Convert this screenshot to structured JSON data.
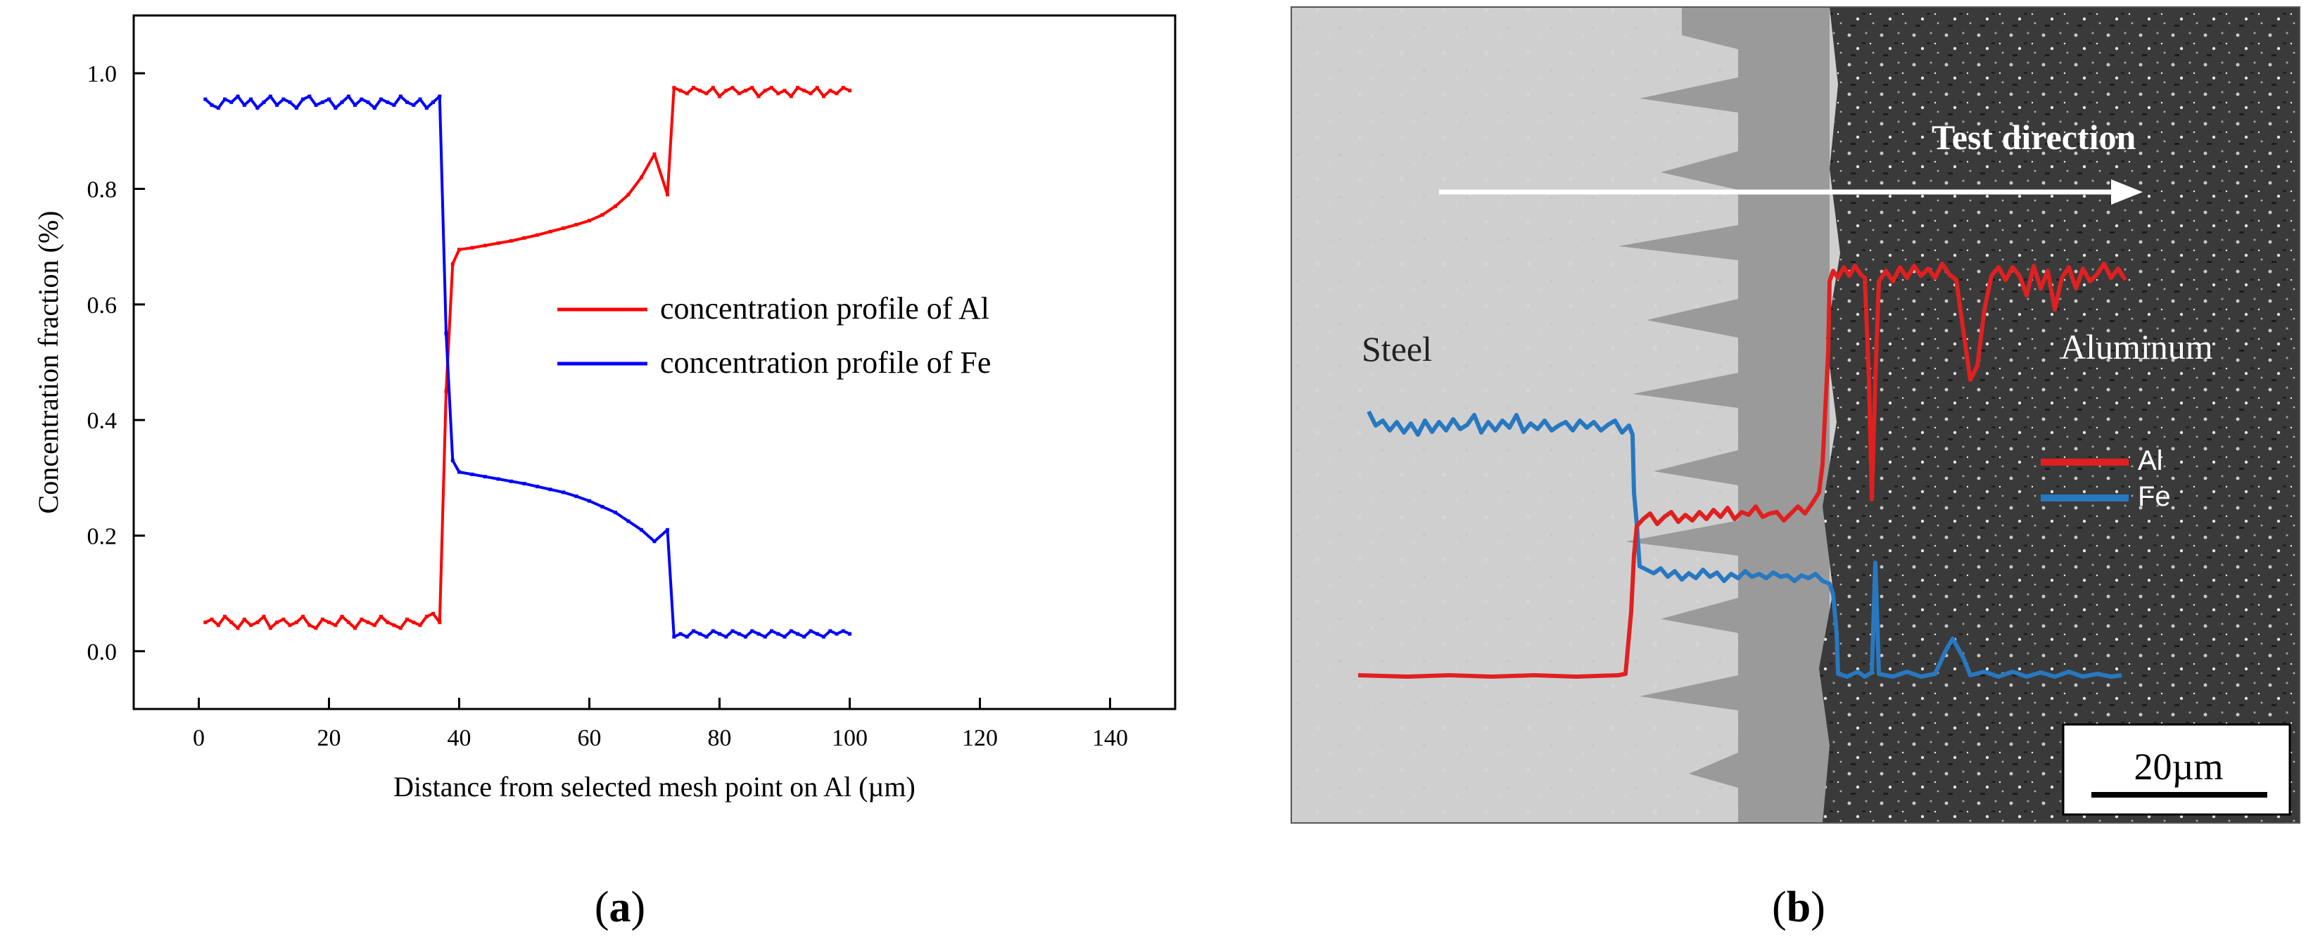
{
  "panels": {
    "a": {
      "caption_letter": "a",
      "chart_data": {
        "type": "line",
        "title": "",
        "xlabel": "Distance from selected mesh point on Al (µm)",
        "ylabel": "Concentration fraction (%)",
        "xlim": [
          -10,
          150
        ],
        "ylim": [
          -0.1,
          1.1
        ],
        "xticks": [
          0,
          20,
          40,
          60,
          80,
          100,
          120,
          140
        ],
        "yticks": [
          0.0,
          0.2,
          0.4,
          0.6,
          0.8,
          1.0
        ],
        "xtick_labels": [
          "0",
          "20",
          "40",
          "60",
          "80",
          "100",
          "120",
          "140"
        ],
        "ytick_labels": [
          "0.0",
          "0.2",
          "0.4",
          "0.6",
          "0.8",
          "1.0"
        ],
        "legend_position": "center-right",
        "series": [
          {
            "name": "concentration profile of Al",
            "color": "#ff0000",
            "x": [
              1,
              2,
              3,
              4,
              5,
              6,
              7,
              8,
              9,
              10,
              11,
              12,
              13,
              14,
              15,
              16,
              17,
              18,
              19,
              20,
              21,
              22,
              23,
              24,
              25,
              26,
              27,
              28,
              29,
              30,
              31,
              32,
              33,
              34,
              35,
              36,
              37,
              38,
              39,
              40,
              42,
              44,
              46,
              48,
              50,
              52,
              54,
              56,
              58,
              60,
              62,
              64,
              66,
              68,
              70,
              72,
              73,
              74,
              75,
              76,
              77,
              78,
              79,
              80,
              81,
              82,
              83,
              84,
              85,
              86,
              87,
              88,
              89,
              90,
              91,
              92,
              93,
              94,
              95,
              96,
              97,
              98,
              99,
              100
            ],
            "y": [
              0.05,
              0.055,
              0.045,
              0.06,
              0.05,
              0.04,
              0.055,
              0.045,
              0.05,
              0.06,
              0.04,
              0.05,
              0.055,
              0.045,
              0.05,
              0.06,
              0.045,
              0.04,
              0.055,
              0.05,
              0.045,
              0.06,
              0.05,
              0.04,
              0.055,
              0.05,
              0.045,
              0.06,
              0.05,
              0.045,
              0.04,
              0.055,
              0.05,
              0.045,
              0.06,
              0.065,
              0.05,
              0.45,
              0.67,
              0.695,
              0.698,
              0.702,
              0.706,
              0.71,
              0.715,
              0.72,
              0.726,
              0.732,
              0.738,
              0.745,
              0.755,
              0.77,
              0.79,
              0.82,
              0.86,
              0.79,
              0.975,
              0.97,
              0.965,
              0.975,
              0.97,
              0.965,
              0.975,
              0.96,
              0.97,
              0.975,
              0.965,
              0.97,
              0.975,
              0.96,
              0.97,
              0.975,
              0.965,
              0.97,
              0.96,
              0.975,
              0.97,
              0.965,
              0.975,
              0.96,
              0.97,
              0.965,
              0.975,
              0.97
            ]
          },
          {
            "name": "concentration profile of Fe",
            "color": "#0000ff",
            "x": [
              1,
              2,
              3,
              4,
              5,
              6,
              7,
              8,
              9,
              10,
              11,
              12,
              13,
              14,
              15,
              16,
              17,
              18,
              19,
              20,
              21,
              22,
              23,
              24,
              25,
              26,
              27,
              28,
              29,
              30,
              31,
              32,
              33,
              34,
              35,
              36,
              37,
              38,
              39,
              40,
              42,
              44,
              46,
              48,
              50,
              52,
              54,
              56,
              58,
              60,
              62,
              64,
              66,
              68,
              70,
              72,
              73,
              74,
              75,
              76,
              77,
              78,
              79,
              80,
              81,
              82,
              83,
              84,
              85,
              86,
              87,
              88,
              89,
              90,
              91,
              92,
              93,
              94,
              95,
              96,
              97,
              98,
              99,
              100
            ],
            "y": [
              0.955,
              0.945,
              0.94,
              0.955,
              0.95,
              0.96,
              0.945,
              0.955,
              0.94,
              0.95,
              0.96,
              0.945,
              0.955,
              0.95,
              0.94,
              0.955,
              0.96,
              0.945,
              0.95,
              0.955,
              0.94,
              0.95,
              0.96,
              0.945,
              0.955,
              0.95,
              0.94,
              0.955,
              0.95,
              0.945,
              0.96,
              0.95,
              0.945,
              0.955,
              0.94,
              0.95,
              0.96,
              0.55,
              0.33,
              0.31,
              0.306,
              0.302,
              0.298,
              0.294,
              0.29,
              0.285,
              0.28,
              0.275,
              0.268,
              0.26,
              0.25,
              0.24,
              0.225,
              0.21,
              0.19,
              0.21,
              0.025,
              0.03,
              0.025,
              0.035,
              0.03,
              0.025,
              0.035,
              0.03,
              0.025,
              0.035,
              0.03,
              0.025,
              0.035,
              0.03,
              0.025,
              0.035,
              0.03,
              0.025,
              0.035,
              0.03,
              0.025,
              0.035,
              0.03,
              0.025,
              0.035,
              0.03,
              0.035,
              0.03
            ]
          }
        ]
      }
    },
    "b": {
      "caption_letter": "b",
      "labels": {
        "steel": "Steel",
        "aluminum": "Aluminum",
        "test_direction": "Test direction",
        "scale_bar": "20µm"
      },
      "legend": [
        {
          "name": "Al",
          "color": "#e02020"
        },
        {
          "name": "Fe",
          "color": "#2878c0"
        }
      ],
      "colors": {
        "steel_bg": "#cfcfcf",
        "intermetallic_bg": "#9a9a9a",
        "aluminum_bg": "#3a3a3a",
        "al_line": "#e02020",
        "fe_line": "#2878c0",
        "arrow": "#ffffff"
      }
    }
  }
}
